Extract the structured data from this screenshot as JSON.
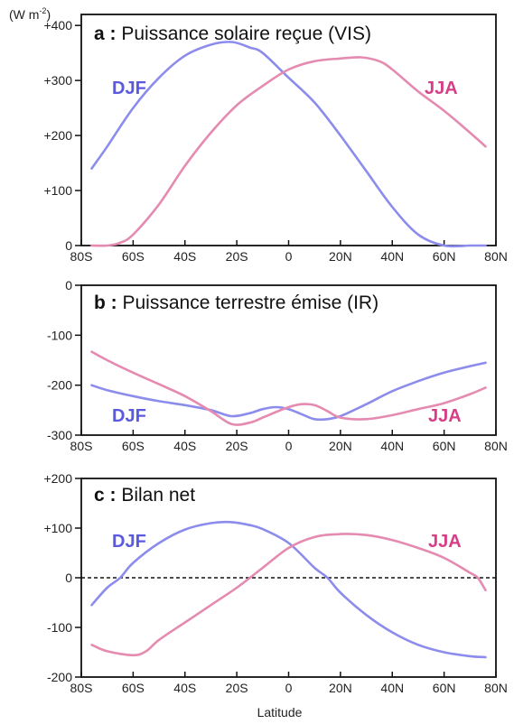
{
  "unit_label": "(W m",
  "unit_sup": "-2",
  "unit_close": ")",
  "xlabel": "Latitude",
  "x_ticks": [
    {
      "value": -80,
      "label": "80S"
    },
    {
      "value": -60,
      "label": "60S"
    },
    {
      "value": -40,
      "label": "40S"
    },
    {
      "value": -20,
      "label": "20S"
    },
    {
      "value": 0,
      "label": "0"
    },
    {
      "value": 20,
      "label": "20N"
    },
    {
      "value": 40,
      "label": "40N"
    },
    {
      "value": 60,
      "label": "60N"
    },
    {
      "value": 80,
      "label": "80N"
    }
  ],
  "colors": {
    "DJF": "#5a5ae0",
    "JJA": "#d63f87",
    "djf_line": "#8c8cec",
    "jja_line": "#e58ab0"
  },
  "chart_data": [
    {
      "type": "line",
      "title_letter": "a :",
      "title": "Puissance solaire reçue (VIS)",
      "xlim": [
        -80,
        80
      ],
      "ylim": [
        0,
        420
      ],
      "y_ticks": [
        {
          "value": 0,
          "label": "0"
        },
        {
          "value": 100,
          "label": "+100"
        },
        {
          "value": 200,
          "label": "+200"
        },
        {
          "value": 300,
          "label": "+300"
        },
        {
          "value": 400,
          "label": "+400"
        }
      ],
      "series": [
        {
          "name": "DJF",
          "x": [
            -76,
            -70,
            -60,
            -50,
            -40,
            -30,
            -22,
            -15,
            -10,
            0,
            10,
            20,
            30,
            40,
            50,
            60,
            70,
            76
          ],
          "y": [
            140,
            180,
            250,
            305,
            345,
            365,
            370,
            360,
            350,
            305,
            260,
            200,
            135,
            70,
            20,
            0,
            0,
            0
          ]
        },
        {
          "name": "JJA",
          "x": [
            -76,
            -70,
            -65,
            -60,
            -50,
            -40,
            -30,
            -20,
            -10,
            0,
            10,
            20,
            28,
            35,
            40,
            50,
            60,
            70,
            76
          ],
          "y": [
            0,
            0,
            5,
            20,
            75,
            145,
            205,
            255,
            290,
            320,
            335,
            340,
            342,
            335,
            320,
            280,
            245,
            205,
            180
          ]
        }
      ],
      "label_djf": "DJF",
      "label_jja": "JJA"
    },
    {
      "type": "line",
      "title_letter": "b :",
      "title": "Puissance terrestre émise (IR)",
      "xlim": [
        -80,
        80
      ],
      "ylim": [
        -300,
        0
      ],
      "y_ticks": [
        {
          "value": 0,
          "label": "0"
        },
        {
          "value": -100,
          "label": "-100"
        },
        {
          "value": -200,
          "label": "-200"
        },
        {
          "value": -300,
          "label": "-300"
        }
      ],
      "series": [
        {
          "name": "DJF",
          "x": [
            -76,
            -70,
            -60,
            -50,
            -40,
            -30,
            -22,
            -15,
            -10,
            -5,
            0,
            5,
            10,
            15,
            20,
            30,
            40,
            50,
            60,
            70,
            76
          ],
          "y": [
            -200,
            -210,
            -222,
            -232,
            -240,
            -250,
            -262,
            -256,
            -248,
            -244,
            -248,
            -258,
            -268,
            -268,
            -262,
            -238,
            -212,
            -192,
            -175,
            -162,
            -155
          ]
        },
        {
          "name": "JJA",
          "x": [
            -76,
            -70,
            -60,
            -50,
            -40,
            -30,
            -22,
            -15,
            -10,
            -5,
            0,
            5,
            10,
            15,
            20,
            30,
            40,
            50,
            60,
            70,
            76
          ],
          "y": [
            -133,
            -150,
            -175,
            -198,
            -222,
            -252,
            -278,
            -275,
            -265,
            -254,
            -244,
            -238,
            -240,
            -252,
            -265,
            -268,
            -260,
            -248,
            -236,
            -218,
            -205
          ]
        }
      ],
      "label_djf": "DJF",
      "label_jja": "JJA"
    },
    {
      "type": "line",
      "title_letter": "c :",
      "title": "Bilan net",
      "xlim": [
        -80,
        80
      ],
      "ylim": [
        -200,
        200
      ],
      "zero_line": true,
      "y_ticks": [
        {
          "value": 200,
          "label": "+200"
        },
        {
          "value": 100,
          "label": "+100"
        },
        {
          "value": 0,
          "label": "0"
        },
        {
          "value": -100,
          "label": "-100"
        },
        {
          "value": -200,
          "label": "-200"
        }
      ],
      "series": [
        {
          "name": "DJF",
          "x": [
            -76,
            -70,
            -65,
            -60,
            -50,
            -40,
            -30,
            -22,
            -15,
            -10,
            0,
            10,
            15,
            20,
            30,
            40,
            50,
            60,
            70,
            76
          ],
          "y": [
            -55,
            -20,
            0,
            30,
            70,
            97,
            110,
            112,
            106,
            98,
            70,
            20,
            0,
            -30,
            -75,
            -110,
            -135,
            -150,
            -158,
            -160
          ]
        },
        {
          "name": "JJA",
          "x": [
            -76,
            -70,
            -60,
            -55,
            -50,
            -40,
            -30,
            -20,
            -10,
            0,
            10,
            20,
            30,
            40,
            50,
            60,
            70,
            73,
            76
          ],
          "y": [
            -135,
            -148,
            -156,
            -148,
            -125,
            -90,
            -55,
            -20,
            20,
            60,
            82,
            88,
            86,
            76,
            60,
            40,
            10,
            0,
            -25
          ]
        }
      ],
      "label_djf": "DJF",
      "label_jja": "JJA"
    }
  ]
}
